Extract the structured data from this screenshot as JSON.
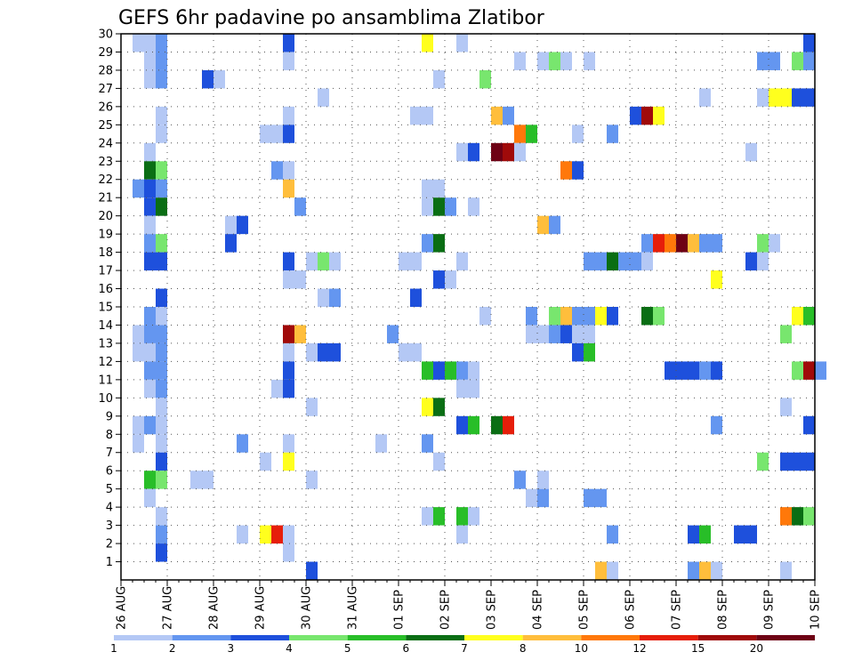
{
  "chart_data": {
    "type": "heatmap",
    "title": "GEFS 6hr padavine po ansamblima Zlatibor",
    "x_tick_labels": [
      "26 AUG",
      "27 AUG",
      "28 AUG",
      "29 AUG",
      "30 AUG",
      "31 AUG",
      "01 SEP",
      "02 SEP",
      "03 SEP",
      "04 SEP",
      "05 SEP",
      "06 SEP",
      "07 SEP",
      "08 SEP",
      "09 SEP",
      "10 SEP"
    ],
    "y_tick_labels": [
      "1",
      "2",
      "3",
      "4",
      "5",
      "6",
      "7",
      "8",
      "9",
      "10",
      "11",
      "12",
      "13",
      "14",
      "15",
      "16",
      "17",
      "18",
      "19",
      "20",
      "21",
      "22",
      "23",
      "24",
      "25",
      "26",
      "27",
      "28",
      "29",
      "30"
    ],
    "xlim": [
      0,
      15
    ],
    "ylim": [
      0,
      30
    ],
    "grid": true,
    "x_step_days": 0.25,
    "legend": {
      "placement": "bottom",
      "labels": [
        "1",
        "2",
        "3",
        "4",
        "5",
        "6",
        "7",
        "8",
        "10",
        "12",
        "15",
        "20"
      ],
      "colors": [
        "#b4c8f5",
        "#6496f0",
        "#1e50dc",
        "#78e66e",
        "#28be28",
        "#0a6e14",
        "#ffff1e",
        "#ffbe3c",
        "#ff780a",
        "#e61e0a",
        "#a00a0a",
        "#6e0014"
      ]
    },
    "cells": [
      [
        0.25,
        30,
        1
      ],
      [
        0.5,
        30,
        1
      ],
      [
        0.75,
        30,
        2
      ],
      [
        3.5,
        30,
        3
      ],
      [
        6.5,
        30,
        7
      ],
      [
        7.25,
        30,
        1
      ],
      [
        14.75,
        30,
        3
      ],
      [
        0.5,
        29,
        1
      ],
      [
        0.75,
        29,
        2
      ],
      [
        3.5,
        29,
        1
      ],
      [
        8.5,
        29,
        1
      ],
      [
        9.0,
        29,
        1
      ],
      [
        9.25,
        29,
        4
      ],
      [
        9.5,
        29,
        1
      ],
      [
        10.0,
        29,
        1
      ],
      [
        13.75,
        29,
        2
      ],
      [
        14.0,
        29,
        2
      ],
      [
        14.5,
        29,
        4
      ],
      [
        14.75,
        29,
        2
      ],
      [
        0.5,
        28,
        1
      ],
      [
        0.75,
        28,
        2
      ],
      [
        1.75,
        28,
        3
      ],
      [
        2.0,
        28,
        1
      ],
      [
        6.75,
        28,
        1
      ],
      [
        7.75,
        28,
        4
      ],
      [
        4.25,
        27,
        1
      ],
      [
        12.5,
        27,
        1
      ],
      [
        13.75,
        27,
        1
      ],
      [
        14.0,
        27,
        7
      ],
      [
        14.25,
        27,
        7
      ],
      [
        14.5,
        27,
        3
      ],
      [
        14.75,
        27,
        3
      ],
      [
        0.75,
        26,
        1
      ],
      [
        3.5,
        26,
        1
      ],
      [
        6.25,
        26,
        1
      ],
      [
        6.5,
        26,
        1
      ],
      [
        8.0,
        26,
        8
      ],
      [
        8.25,
        26,
        2
      ],
      [
        11.0,
        26,
        3
      ],
      [
        11.25,
        26,
        11
      ],
      [
        11.5,
        26,
        7
      ],
      [
        0.75,
        25,
        1
      ],
      [
        3.0,
        25,
        1
      ],
      [
        3.25,
        25,
        1
      ],
      [
        3.5,
        25,
        3
      ],
      [
        8.5,
        25,
        9
      ],
      [
        8.75,
        25,
        5
      ],
      [
        9.75,
        25,
        1
      ],
      [
        10.5,
        25,
        2
      ],
      [
        0.5,
        24,
        1
      ],
      [
        7.25,
        24,
        1
      ],
      [
        7.5,
        24,
        3
      ],
      [
        8.0,
        24,
        12
      ],
      [
        8.25,
        24,
        11
      ],
      [
        8.5,
        24,
        1
      ],
      [
        13.5,
        24,
        1
      ],
      [
        0.5,
        23,
        6
      ],
      [
        0.75,
        23,
        4
      ],
      [
        3.25,
        23,
        2
      ],
      [
        3.5,
        23,
        1
      ],
      [
        9.5,
        23,
        9
      ],
      [
        9.75,
        23,
        3
      ],
      [
        0.25,
        22,
        2
      ],
      [
        0.5,
        22,
        3
      ],
      [
        0.75,
        22,
        2
      ],
      [
        3.5,
        22,
        8
      ],
      [
        6.5,
        22,
        1
      ],
      [
        6.75,
        22,
        1
      ],
      [
        0.5,
        21,
        3
      ],
      [
        0.75,
        21,
        6
      ],
      [
        3.75,
        21,
        2
      ],
      [
        6.5,
        21,
        1
      ],
      [
        6.75,
        21,
        6
      ],
      [
        7.0,
        21,
        2
      ],
      [
        7.5,
        21,
        1
      ],
      [
        0.5,
        20,
        1
      ],
      [
        2.25,
        20,
        1
      ],
      [
        2.5,
        20,
        3
      ],
      [
        9.0,
        20,
        8
      ],
      [
        9.25,
        20,
        2
      ],
      [
        0.5,
        19,
        2
      ],
      [
        0.75,
        19,
        4
      ],
      [
        2.25,
        19,
        3
      ],
      [
        6.5,
        19,
        2
      ],
      [
        6.75,
        19,
        6
      ],
      [
        11.25,
        19,
        2
      ],
      [
        11.5,
        19,
        10
      ],
      [
        11.75,
        19,
        9
      ],
      [
        12.0,
        19,
        12
      ],
      [
        12.25,
        19,
        8
      ],
      [
        12.5,
        19,
        2
      ],
      [
        12.75,
        19,
        2
      ],
      [
        13.75,
        19,
        4
      ],
      [
        14.0,
        19,
        1
      ],
      [
        0.5,
        18,
        3
      ],
      [
        0.75,
        18,
        3
      ],
      [
        3.5,
        18,
        3
      ],
      [
        4.0,
        18,
        1
      ],
      [
        4.25,
        18,
        4
      ],
      [
        4.5,
        18,
        1
      ],
      [
        6.0,
        18,
        1
      ],
      [
        6.25,
        18,
        1
      ],
      [
        7.25,
        18,
        1
      ],
      [
        10.0,
        18,
        2
      ],
      [
        10.25,
        18,
        2
      ],
      [
        10.5,
        18,
        6
      ],
      [
        10.75,
        18,
        2
      ],
      [
        11.0,
        18,
        2
      ],
      [
        11.25,
        18,
        1
      ],
      [
        13.5,
        18,
        3
      ],
      [
        13.75,
        18,
        1
      ],
      [
        3.5,
        17,
        1
      ],
      [
        3.75,
        17,
        1
      ],
      [
        6.75,
        17,
        3
      ],
      [
        7.0,
        17,
        1
      ],
      [
        12.75,
        17,
        7
      ],
      [
        0.75,
        16,
        3
      ],
      [
        4.25,
        16,
        1
      ],
      [
        4.5,
        16,
        2
      ],
      [
        6.25,
        16,
        3
      ],
      [
        0.5,
        15,
        2
      ],
      [
        0.75,
        15,
        1
      ],
      [
        7.75,
        15,
        1
      ],
      [
        8.75,
        15,
        2
      ],
      [
        9.25,
        15,
        4
      ],
      [
        9.5,
        15,
        8
      ],
      [
        9.75,
        15,
        2
      ],
      [
        10.0,
        15,
        2
      ],
      [
        10.25,
        15,
        7
      ],
      [
        10.5,
        15,
        3
      ],
      [
        11.25,
        15,
        6
      ],
      [
        11.5,
        15,
        4
      ],
      [
        14.5,
        15,
        7
      ],
      [
        14.75,
        15,
        5
      ],
      [
        0.25,
        14,
        1
      ],
      [
        0.5,
        14,
        2
      ],
      [
        0.75,
        14,
        2
      ],
      [
        3.5,
        14,
        11
      ],
      [
        3.75,
        14,
        8
      ],
      [
        5.75,
        14,
        2
      ],
      [
        8.75,
        14,
        1
      ],
      [
        9.0,
        14,
        1
      ],
      [
        9.25,
        14,
        2
      ],
      [
        9.5,
        14,
        3
      ],
      [
        9.75,
        14,
        1
      ],
      [
        10.0,
        14,
        1
      ],
      [
        14.25,
        14,
        4
      ],
      [
        0.25,
        13,
        1
      ],
      [
        0.5,
        13,
        1
      ],
      [
        0.75,
        13,
        2
      ],
      [
        3.5,
        13,
        1
      ],
      [
        4.0,
        13,
        1
      ],
      [
        4.25,
        13,
        3
      ],
      [
        4.5,
        13,
        3
      ],
      [
        6.0,
        13,
        1
      ],
      [
        6.25,
        13,
        1
      ],
      [
        9.75,
        13,
        3
      ],
      [
        10.0,
        13,
        5
      ],
      [
        0.5,
        12,
        2
      ],
      [
        0.75,
        12,
        2
      ],
      [
        3.5,
        12,
        3
      ],
      [
        6.5,
        12,
        5
      ],
      [
        6.75,
        12,
        3
      ],
      [
        7.0,
        12,
        5
      ],
      [
        7.25,
        12,
        2
      ],
      [
        7.5,
        12,
        1
      ],
      [
        11.75,
        12,
        3
      ],
      [
        12.0,
        12,
        3
      ],
      [
        12.25,
        12,
        3
      ],
      [
        12.5,
        12,
        2
      ],
      [
        12.75,
        12,
        3
      ],
      [
        14.5,
        12,
        4
      ],
      [
        14.75,
        12,
        11
      ],
      [
        15.0,
        12,
        2
      ],
      [
        0.5,
        11,
        1
      ],
      [
        0.75,
        11,
        2
      ],
      [
        3.25,
        11,
        1
      ],
      [
        3.5,
        11,
        3
      ],
      [
        7.25,
        11,
        1
      ],
      [
        7.5,
        11,
        1
      ],
      [
        0.75,
        10,
        1
      ],
      [
        4.0,
        10,
        1
      ],
      [
        6.5,
        10,
        7
      ],
      [
        6.75,
        10,
        6
      ],
      [
        14.25,
        10,
        1
      ],
      [
        0.25,
        9,
        1
      ],
      [
        0.5,
        9,
        2
      ],
      [
        0.75,
        9,
        1
      ],
      [
        7.25,
        9,
        3
      ],
      [
        7.5,
        9,
        5
      ],
      [
        8.0,
        9,
        6
      ],
      [
        8.25,
        9,
        10
      ],
      [
        12.75,
        9,
        2
      ],
      [
        14.75,
        9,
        3
      ],
      [
        0.25,
        8,
        1
      ],
      [
        0.75,
        8,
        1
      ],
      [
        2.5,
        8,
        2
      ],
      [
        3.5,
        8,
        1
      ],
      [
        5.5,
        8,
        1
      ],
      [
        6.5,
        8,
        2
      ],
      [
        0.75,
        7,
        3
      ],
      [
        3.0,
        7,
        1
      ],
      [
        3.5,
        7,
        7
      ],
      [
        6.75,
        7,
        1
      ],
      [
        13.75,
        7,
        4
      ],
      [
        14.25,
        7,
        3
      ],
      [
        14.5,
        7,
        3
      ],
      [
        14.75,
        7,
        3
      ],
      [
        0.5,
        6,
        5
      ],
      [
        0.75,
        6,
        4
      ],
      [
        1.5,
        6,
        1
      ],
      [
        1.75,
        6,
        1
      ],
      [
        4.0,
        6,
        1
      ],
      [
        8.5,
        6,
        2
      ],
      [
        9.0,
        6,
        1
      ],
      [
        0.5,
        5,
        1
      ],
      [
        8.75,
        5,
        1
      ],
      [
        9.0,
        5,
        2
      ],
      [
        10.0,
        5,
        2
      ],
      [
        10.25,
        5,
        2
      ],
      [
        0.75,
        4,
        1
      ],
      [
        6.5,
        4,
        1
      ],
      [
        6.75,
        4,
        5
      ],
      [
        7.25,
        4,
        5
      ],
      [
        7.5,
        4,
        1
      ],
      [
        14.25,
        4,
        9
      ],
      [
        14.5,
        4,
        6
      ],
      [
        14.75,
        4,
        4
      ],
      [
        0.75,
        3,
        2
      ],
      [
        2.5,
        3,
        1
      ],
      [
        3.0,
        3,
        7
      ],
      [
        3.25,
        3,
        10
      ],
      [
        3.5,
        3,
        1
      ],
      [
        7.25,
        3,
        1
      ],
      [
        10.5,
        3,
        2
      ],
      [
        12.25,
        3,
        3
      ],
      [
        12.5,
        3,
        5
      ],
      [
        13.25,
        3,
        3
      ],
      [
        13.5,
        3,
        3
      ],
      [
        0.75,
        2,
        3
      ],
      [
        3.5,
        2,
        1
      ],
      [
        4.0,
        1,
        3
      ],
      [
        10.25,
        1,
        8
      ],
      [
        10.5,
        1,
        1
      ],
      [
        12.25,
        1,
        2
      ],
      [
        12.5,
        1,
        8
      ],
      [
        12.75,
        1,
        1
      ],
      [
        14.25,
        1,
        1
      ]
    ]
  }
}
